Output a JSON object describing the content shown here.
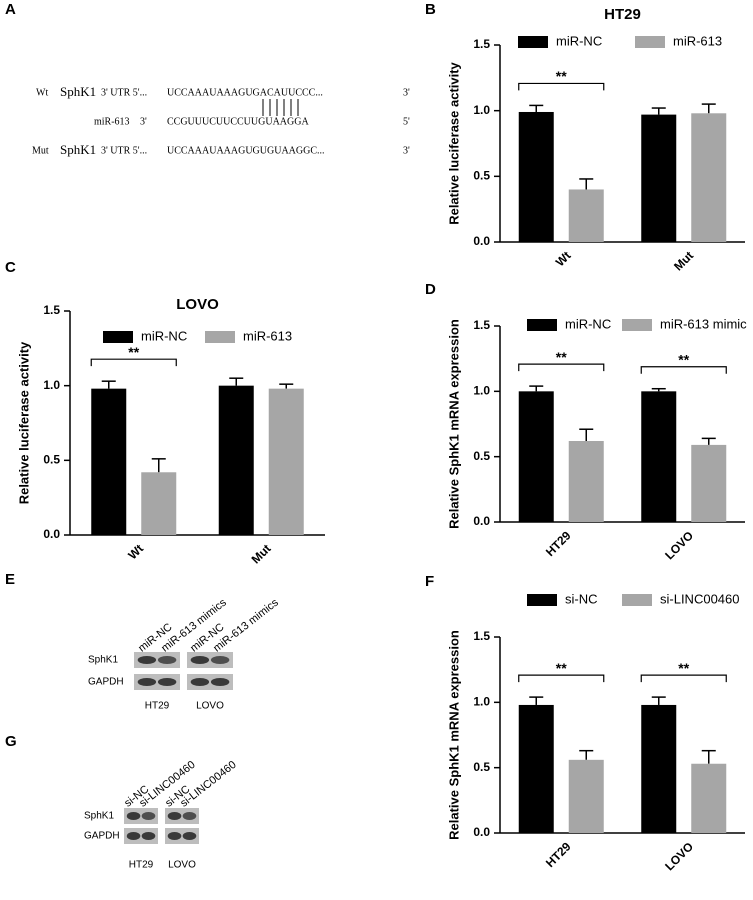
{
  "panel_a": {
    "letter": "A",
    "wt": {
      "label": "Wt",
      "gene": "SphK1",
      "utr": "3' UTR 5'...",
      "seq": "UCCAAAUAAAGUGACAUUCCC...",
      "end": "3'"
    },
    "mir": {
      "label": "miR-613",
      "start": "3'",
      "seq": "CCGUUUCUUCCUUGUAAGGA",
      "end": "5'"
    },
    "mut": {
      "label": "Mut",
      "gene": "SphK1",
      "utr": "3' UTR 5'...",
      "seq": "UCCAAAUAAAGUGUGUAAGGC...",
      "end": "3'"
    }
  },
  "panel_e": {
    "letter": "E",
    "lanes": [
      "miR-NC",
      "miR-613 mimics",
      "miR-NC",
      "miR-613 mimics"
    ],
    "rows": [
      "SphK1",
      "GAPDH"
    ],
    "groups": [
      "HT29",
      "LOVO"
    ]
  },
  "panel_g": {
    "letter": "G",
    "lanes": [
      "si-NC",
      "si-LINC00460",
      "si-NC",
      "si-LINC00460"
    ],
    "rows": [
      "SphK1",
      "GAPDH"
    ],
    "groups": [
      "HT29",
      "LOVO"
    ]
  },
  "chart_data": [
    {
      "type": "bar",
      "panel": "B",
      "title": "HT29",
      "y_label": "Relative luciferase activity",
      "categories": [
        "Wt",
        "Mut"
      ],
      "series": [
        {
          "name": "miR-NC",
          "color": "#000000",
          "values": [
            0.99,
            0.97
          ],
          "errors": [
            0.05,
            0.05
          ]
        },
        {
          "name": "miR-613",
          "color": "#a6a6a6",
          "values": [
            0.4,
            0.98
          ],
          "errors": [
            0.08,
            0.07
          ]
        }
      ],
      "significance": [
        "**",
        null
      ],
      "ylim": [
        0,
        1.5
      ],
      "yticks": [
        {
          "value": 0,
          "label": "0.0"
        },
        0.5,
        {
          "value": 1,
          "label": "1.0"
        },
        1.5
      ]
    },
    {
      "type": "bar",
      "panel": "C",
      "title": "LOVO",
      "y_label": "Relative luciferase activity",
      "categories": [
        "Wt",
        "Mut"
      ],
      "series": [
        {
          "name": "miR-NC",
          "color": "#000000",
          "values": [
            0.98,
            1.0
          ],
          "errors": [
            0.05,
            0.05
          ]
        },
        {
          "name": "miR-613",
          "color": "#a6a6a6",
          "values": [
            0.42,
            0.98
          ],
          "errors": [
            0.09,
            0.03
          ]
        }
      ],
      "significance": [
        "**",
        null
      ],
      "ylim": [
        0,
        1.5
      ],
      "yticks": [
        {
          "value": 0,
          "label": "0.0"
        },
        0.5,
        {
          "value": 1,
          "label": "1.0"
        },
        1.5
      ]
    },
    {
      "type": "bar",
      "panel": "D",
      "y_label": "Relative SphK1 mRNA expression",
      "categories": [
        "HT29",
        "LOVO"
      ],
      "series": [
        {
          "name": "miR-NC",
          "color": "#000000",
          "values": [
            1.0,
            1.0
          ],
          "errors": [
            0.04,
            0.02
          ]
        },
        {
          "name": "miR-613 mimic",
          "color": "#a6a6a6",
          "values": [
            0.62,
            0.59
          ],
          "errors": [
            0.09,
            0.05
          ]
        }
      ],
      "significance": [
        "**",
        "**"
      ],
      "ylim": [
        0,
        1.5
      ],
      "yticks": [
        {
          "value": 0,
          "label": "0.0"
        },
        0.5,
        {
          "value": 1,
          "label": "1.0"
        },
        1.5
      ]
    },
    {
      "type": "bar",
      "panel": "F",
      "y_label": "Relative SphK1 mRNA expression",
      "categories": [
        "HT29",
        "LOVO"
      ],
      "series": [
        {
          "name": "si-NC",
          "color": "#000000",
          "values": [
            0.98,
            0.98
          ],
          "errors": [
            0.06,
            0.06
          ]
        },
        {
          "name": "si-LINC00460",
          "color": "#a6a6a6",
          "values": [
            0.56,
            0.53
          ],
          "errors": [
            0.07,
            0.1
          ]
        }
      ],
      "significance": [
        "**",
        "**"
      ],
      "ylim": [
        0,
        1.5
      ],
      "yticks": [
        {
          "value": 0,
          "label": "0.0"
        },
        0.5,
        {
          "value": 1,
          "label": "1.0"
        },
        1.5
      ]
    }
  ]
}
